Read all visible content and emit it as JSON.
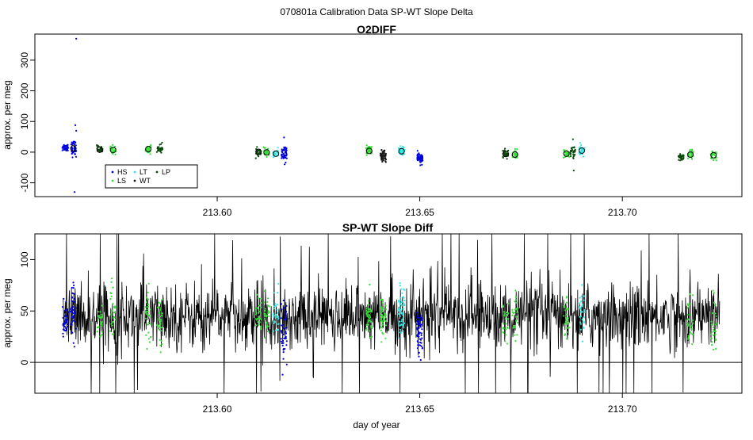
{
  "figure_title": "070801a   Calibration Data SP-WT Slope Delta",
  "colors": {
    "HS": "#0000dd",
    "LS": "#33dd33",
    "LT": "#33e6e6",
    "WT": "#1a1a1a",
    "LP": "#0a4a0a",
    "line": "#000000"
  },
  "chart_data": [
    {
      "type": "scatter",
      "title": "O2DIFF",
      "xlabel": "",
      "ylabel": "approx. per meg",
      "xlim": [
        213.555,
        213.7295
      ],
      "ylim": [
        -145,
        385
      ],
      "yticks": [
        -100,
        0,
        100,
        200,
        300
      ],
      "ytick_labels": [
        "-100",
        "0",
        "100",
        "200",
        "300"
      ],
      "xticks": [
        213.6,
        213.65,
        213.7
      ],
      "xtick_labels": [
        "213.60",
        "213.65",
        "213.70"
      ],
      "legend": {
        "placement": "bottom-left",
        "entries": [
          {
            "key": "HS",
            "label": "HS"
          },
          {
            "key": "LS",
            "label": "LS"
          },
          {
            "key": "LT",
            "label": "LT"
          },
          {
            "key": "WT",
            "label": "WT"
          },
          {
            "key": "LP",
            "label": "LP"
          }
        ]
      },
      "clusters": [
        {
          "series": "HS",
          "x": 213.5625,
          "mean": 16,
          "spread": 6,
          "n": 45
        },
        {
          "series": "HS",
          "x": 213.5645,
          "mean": 12,
          "spread": 12,
          "n": 45
        },
        {
          "series": "LP",
          "x": 213.571,
          "mean": 10,
          "spread": 6,
          "n": 30
        },
        {
          "series": "LS",
          "x": 213.5743,
          "mean": 8,
          "spread": 7,
          "n": 30
        },
        {
          "series": "LS",
          "x": 213.583,
          "mean": 10,
          "spread": 7,
          "n": 30
        },
        {
          "series": "LP",
          "x": 213.5858,
          "mean": 11,
          "spread": 7,
          "n": 30
        },
        {
          "series": "LP",
          "x": 213.6102,
          "mean": 1,
          "spread": 6,
          "n": 30
        },
        {
          "series": "LS",
          "x": 213.6122,
          "mean": 0,
          "spread": 6,
          "n": 30
        },
        {
          "series": "LT",
          "x": 213.6145,
          "mean": -5,
          "spread": 7,
          "n": 30
        },
        {
          "series": "HS",
          "x": 213.6165,
          "mean": -5,
          "spread": 12,
          "n": 45
        },
        {
          "series": "LS",
          "x": 213.6375,
          "mean": 5,
          "spread": 8,
          "n": 45
        },
        {
          "series": "WT",
          "x": 213.641,
          "mean": -12,
          "spread": 8,
          "n": 60
        },
        {
          "series": "LT",
          "x": 213.6455,
          "mean": 3,
          "spread": 8,
          "n": 60
        },
        {
          "series": "HS",
          "x": 213.65,
          "mean": -20,
          "spread": 8,
          "n": 60
        },
        {
          "series": "LP",
          "x": 213.6712,
          "mean": -5,
          "spread": 7,
          "n": 30
        },
        {
          "series": "LS",
          "x": 213.6735,
          "mean": -7,
          "spread": 7,
          "n": 30
        },
        {
          "series": "LS",
          "x": 213.6862,
          "mean": -5,
          "spread": 7,
          "n": 30
        },
        {
          "series": "LP",
          "x": 213.6878,
          "mean": 0,
          "spread": 10,
          "n": 30
        },
        {
          "series": "LT",
          "x": 213.69,
          "mean": 5,
          "spread": 8,
          "n": 30
        },
        {
          "series": "LP",
          "x": 213.7145,
          "mean": -15,
          "spread": 6,
          "n": 30
        },
        {
          "series": "LS",
          "x": 213.7168,
          "mean": -8,
          "spread": 7,
          "n": 30
        },
        {
          "series": "LS",
          "x": 213.7225,
          "mean": -10,
          "spread": 8,
          "n": 30
        }
      ],
      "means": [
        {
          "x": 213.5645,
          "y": 12
        },
        {
          "x": 213.571,
          "y": 8
        },
        {
          "x": 213.5743,
          "y": 7
        },
        {
          "x": 213.583,
          "y": 10
        },
        {
          "x": 213.6102,
          "y": 1
        },
        {
          "x": 213.6122,
          "y": -1
        },
        {
          "x": 213.6145,
          "y": -5
        },
        {
          "x": 213.6375,
          "y": 4
        },
        {
          "x": 213.6455,
          "y": 3
        },
        {
          "x": 213.6712,
          "y": -6
        },
        {
          "x": 213.6735,
          "y": -8
        },
        {
          "x": 213.6862,
          "y": -5
        },
        {
          "x": 213.69,
          "y": 5
        },
        {
          "x": 213.7168,
          "y": -8
        },
        {
          "x": 213.7225,
          "y": -10
        }
      ],
      "outliers": [
        {
          "series": "HS",
          "x": 213.5652,
          "y": 370
        },
        {
          "series": "HS",
          "x": 213.565,
          "y": 88
        },
        {
          "series": "HS",
          "x": 213.5652,
          "y": 70
        },
        {
          "series": "HS",
          "x": 213.5648,
          "y": -130
        },
        {
          "series": "HS",
          "x": 213.6165,
          "y": 48
        },
        {
          "series": "LP",
          "x": 213.6878,
          "y": 42
        },
        {
          "series": "LP",
          "x": 213.688,
          "y": -60
        }
      ]
    },
    {
      "type": "line",
      "title": "SP-WT Slope Diff",
      "xlabel": "day of year",
      "ylabel": "approx. per meg",
      "xlim": [
        213.555,
        213.7295
      ],
      "ylim": [
        -30,
        125
      ],
      "yticks": [
        0,
        50,
        100
      ],
      "ytick_labels": [
        "0",
        "50",
        "100"
      ],
      "xticks": [
        213.6,
        213.65,
        213.7
      ],
      "xtick_labels": [
        "213.60",
        "213.65",
        "213.70"
      ],
      "hline": 0,
      "line_series": {
        "x_start": 213.562,
        "x_end": 213.724,
        "baseline": 45,
        "amplitude": 16
      },
      "overlay_clusters": [
        {
          "series": "HS",
          "x": 213.5625,
          "mean": 40,
          "spread": 8,
          "n": 45
        },
        {
          "series": "HS",
          "x": 213.5645,
          "mean": 50,
          "spread": 15,
          "n": 45
        },
        {
          "series": "LS",
          "x": 213.571,
          "mean": 40,
          "spread": 10,
          "n": 30
        },
        {
          "series": "LS",
          "x": 213.5743,
          "mean": 50,
          "spread": 15,
          "n": 30
        },
        {
          "series": "LS",
          "x": 213.583,
          "mean": 45,
          "spread": 12,
          "n": 30
        },
        {
          "series": "LS",
          "x": 213.5858,
          "mean": 40,
          "spread": 10,
          "n": 30
        },
        {
          "series": "LS",
          "x": 213.6102,
          "mean": 50,
          "spread": 10,
          "n": 30
        },
        {
          "series": "LS",
          "x": 213.6122,
          "mean": 45,
          "spread": 10,
          "n": 30
        },
        {
          "series": "LT",
          "x": 213.6145,
          "mean": 45,
          "spread": 12,
          "n": 30
        },
        {
          "series": "HS",
          "x": 213.6165,
          "mean": 30,
          "spread": 15,
          "n": 45
        },
        {
          "series": "LS",
          "x": 213.6375,
          "mean": 40,
          "spread": 10,
          "n": 45
        },
        {
          "series": "LS",
          "x": 213.641,
          "mean": 45,
          "spread": 10,
          "n": 45
        },
        {
          "series": "LT",
          "x": 213.6455,
          "mean": 50,
          "spread": 12,
          "n": 60
        },
        {
          "series": "HS",
          "x": 213.65,
          "mean": 30,
          "spread": 12,
          "n": 60
        },
        {
          "series": "LS",
          "x": 213.6712,
          "mean": 40,
          "spread": 10,
          "n": 30
        },
        {
          "series": "LS",
          "x": 213.6735,
          "mean": 45,
          "spread": 10,
          "n": 30
        },
        {
          "series": "LS",
          "x": 213.6862,
          "mean": 40,
          "spread": 10,
          "n": 30
        },
        {
          "series": "LT",
          "x": 213.69,
          "mean": 50,
          "spread": 12,
          "n": 30
        },
        {
          "series": "LS",
          "x": 213.7168,
          "mean": 40,
          "spread": 12,
          "n": 30
        },
        {
          "series": "LS",
          "x": 213.7225,
          "mean": 35,
          "spread": 15,
          "n": 30
        }
      ]
    }
  ]
}
